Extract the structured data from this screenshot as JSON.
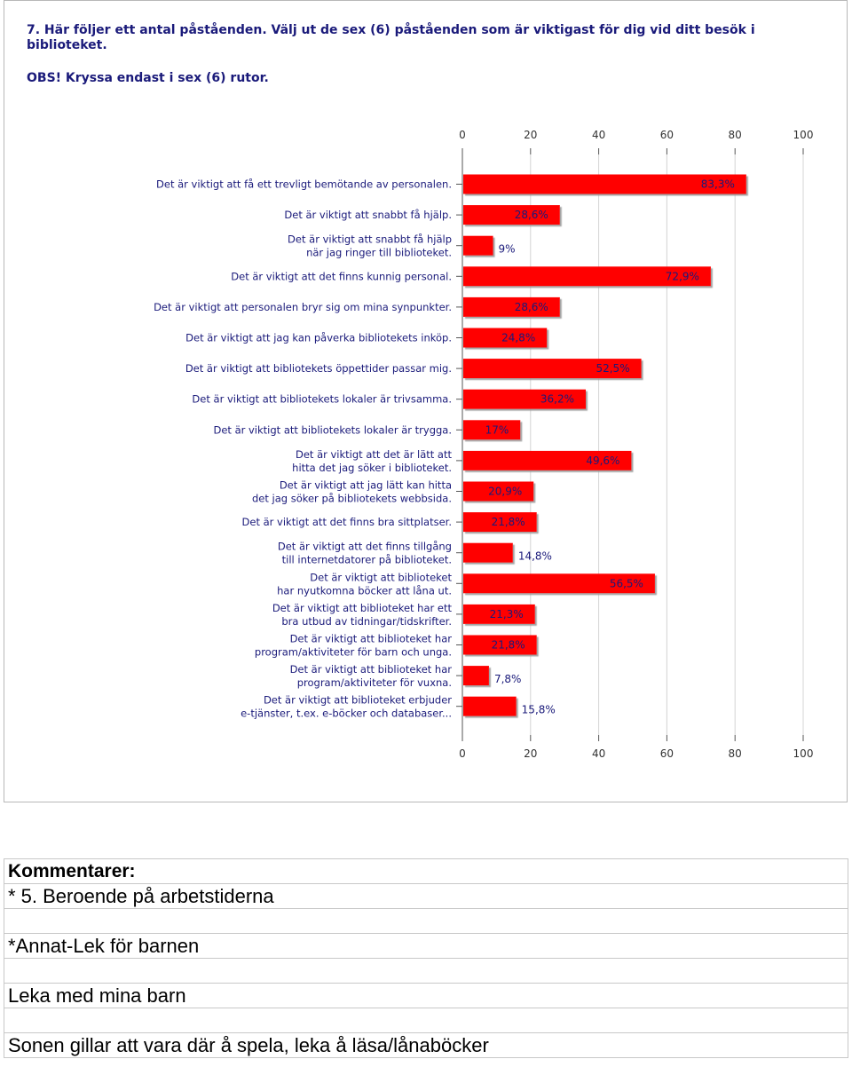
{
  "question": {
    "title": "7. Här följer ett antal påståenden. Välj ut de sex (6) påståenden som är viktigast för dig vid ditt besök i biblioteket.",
    "note": "OBS! Kryssa endast i sex (6) rutor."
  },
  "chart_data": {
    "type": "bar",
    "orientation": "horizontal",
    "title": "",
    "xlabel": "",
    "ylabel": "",
    "xlim": [
      0,
      100
    ],
    "ticks": [
      "0",
      "20",
      "40",
      "60",
      "80",
      "100"
    ],
    "tick_values": [
      0,
      20,
      40,
      60,
      80,
      100
    ],
    "grid": true,
    "bar_color": "#ff0000",
    "categories": [
      [
        "Det är viktigt att få ett trevligt bemötande av personalen."
      ],
      [
        "Det är viktigt att snabbt få hjälp."
      ],
      [
        "Det är viktigt att snabbt få hjälp",
        "när jag ringer till biblioteket."
      ],
      [
        "Det är viktigt att det finns kunnig personal."
      ],
      [
        "Det är viktigt att personalen bryr sig om mina synpunkter."
      ],
      [
        "Det är viktigt att jag kan påverka bibliotekets inköp."
      ],
      [
        "Det är viktigt att bibliotekets öppettider passar mig."
      ],
      [
        "Det är viktigt att bibliotekets lokaler är trivsamma."
      ],
      [
        "Det är viktigt att bibliotekets lokaler är trygga."
      ],
      [
        "Det är viktigt att det är lätt att",
        "hitta det jag söker i biblioteket."
      ],
      [
        "Det är viktigt att jag lätt kan hitta",
        "det jag söker på bibliotekets webbsida."
      ],
      [
        "Det är viktigt att det finns bra sittplatser."
      ],
      [
        "Det är viktigt att det finns tillgång",
        "till internetdatorer på biblioteket."
      ],
      [
        "Det är viktigt att biblioteket",
        "har nyutkomna böcker att låna ut."
      ],
      [
        "Det är viktigt att biblioteket har ett",
        "bra utbud av tidningar/tidskrifter."
      ],
      [
        "Det är viktigt att biblioteket har",
        "program/aktiviteter för barn och unga."
      ],
      [
        "Det är viktigt att biblioteket har",
        "program/aktiviteter för vuxna."
      ],
      [
        "Det är viktigt att biblioteket erbjuder",
        "e-tjänster, t.ex. e-böcker och databaser..."
      ]
    ],
    "values": [
      83.3,
      28.6,
      9,
      72.9,
      28.6,
      24.8,
      52.5,
      36.2,
      17,
      49.6,
      20.9,
      21.8,
      14.8,
      56.5,
      21.3,
      21.8,
      7.8,
      15.8
    ],
    "value_labels": [
      "83,3%",
      "28,6%",
      "9%",
      "72,9%",
      "28,6%",
      "24,8%",
      "52,5%",
      "36,2%",
      "17%",
      "49,6%",
      "20,9%",
      "21,8%",
      "14,8%",
      "56,5%",
      "21,3%",
      "21,8%",
      "7,8%",
      "15,8%"
    ]
  },
  "comments": {
    "heading": "Kommentarer:",
    "rows": [
      "* 5. Beroende på arbetstiderna",
      "",
      "*Annat-Lek för barnen",
      "",
      "Leka med mina barn",
      "",
      "Sonen gillar att vara där å spela, leka å läsa/lånaböcker"
    ]
  }
}
